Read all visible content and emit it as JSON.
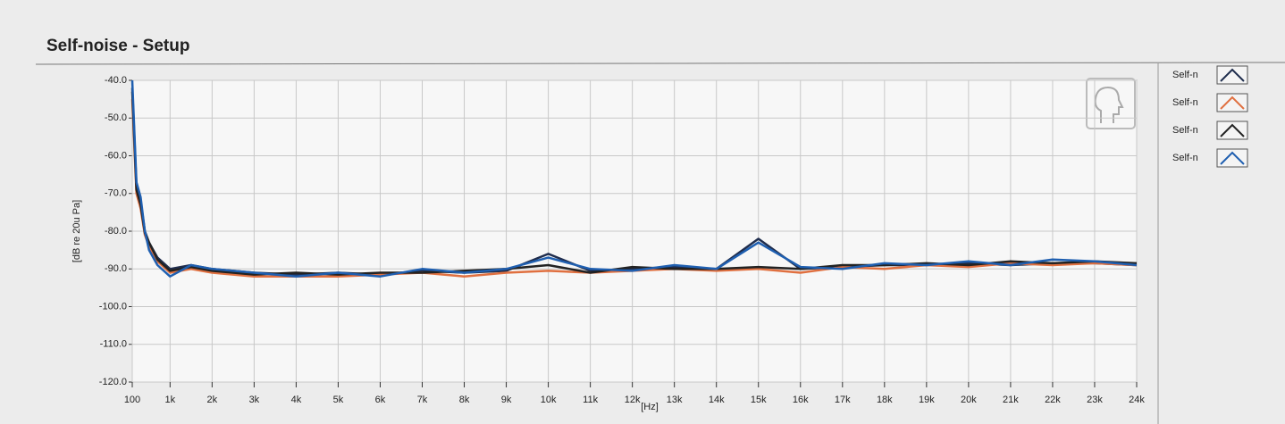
{
  "chart_data": {
    "type": "line",
    "title": "Self-noise - Setup",
    "y_label": "[dB re 20u Pa]",
    "x_label": "[Hz]",
    "x": [
      100,
      200,
      300,
      400,
      500,
      700,
      1000,
      1500,
      2000,
      3000,
      4000,
      5000,
      6000,
      7000,
      8000,
      9000,
      10000,
      11000,
      12000,
      13000,
      14000,
      15000,
      16000,
      17000,
      18000,
      19000,
      20000,
      21000,
      22000,
      23000,
      24000
    ],
    "series": [
      {
        "name": "Self-n",
        "color": "#1f2d4d",
        "values": [
          -42,
          -68,
          -72,
          -80,
          -83,
          -87,
          -90,
          -89,
          -90,
          -91,
          -91.5,
          -91,
          -91.5,
          -90.5,
          -91,
          -90.5,
          -86,
          -90.5,
          -90,
          -89.5,
          -90,
          -82,
          -90,
          -89.5,
          -89,
          -89,
          -88.5,
          -89,
          -88.5,
          -88.5,
          -89
        ]
      },
      {
        "name": "Self-n",
        "color": "#e07040",
        "values": [
          -45,
          -70,
          -74,
          -81,
          -84,
          -88,
          -91,
          -90,
          -91,
          -92,
          -92,
          -92,
          -91.5,
          -91,
          -92,
          -91,
          -90.5,
          -91,
          -90.5,
          -90,
          -90.5,
          -90,
          -91,
          -89.5,
          -90,
          -89,
          -89.5,
          -88.5,
          -89,
          -88.5,
          -89
        ]
      },
      {
        "name": "Self-n",
        "color": "#222222",
        "values": [
          -43,
          -69,
          -73,
          -80.5,
          -83,
          -87.5,
          -90.5,
          -89.5,
          -90.5,
          -91.5,
          -91,
          -91.5,
          -91,
          -91,
          -90.5,
          -90,
          -89,
          -91,
          -89.5,
          -90,
          -90,
          -89.5,
          -90,
          -89,
          -89,
          -88.5,
          -89,
          -88,
          -88.5,
          -88,
          -88.5
        ]
      },
      {
        "name": "Self-n",
        "color": "#1f5fb0",
        "values": [
          -40,
          -67,
          -71,
          -80,
          -85,
          -89,
          -92,
          -89,
          -90,
          -91,
          -92,
          -91,
          -92,
          -90,
          -91,
          -90,
          -87,
          -90,
          -90.5,
          -89,
          -90,
          -83,
          -89.5,
          -90,
          -88.5,
          -89,
          -88,
          -89,
          -87.5,
          -88,
          -89
        ]
      }
    ],
    "xlim": [
      100,
      24000
    ],
    "ylim": [
      -120,
      -40
    ],
    "xticks": [
      100,
      {
        "value": 1000,
        "label": "1k"
      },
      {
        "value": 2000,
        "label": "2k"
      },
      {
        "value": 3000,
        "label": "3k"
      },
      {
        "value": 4000,
        "label": "4k"
      },
      {
        "value": 5000,
        "label": "5k"
      },
      {
        "value": 6000,
        "label": "6k"
      },
      {
        "value": 7000,
        "label": "7k"
      },
      {
        "value": 8000,
        "label": "8k"
      },
      {
        "value": 9000,
        "label": "9k"
      },
      {
        "value": 10000,
        "label": "10k"
      },
      {
        "value": 11000,
        "label": "11k"
      },
      {
        "value": 12000,
        "label": "12k"
      },
      {
        "value": 13000,
        "label": "13k"
      },
      {
        "value": 14000,
        "label": "14k"
      },
      {
        "value": 15000,
        "label": "15k"
      },
      {
        "value": 16000,
        "label": "16k"
      },
      {
        "value": 17000,
        "label": "17k"
      },
      {
        "value": 18000,
        "label": "18k"
      },
      {
        "value": 19000,
        "label": "19k"
      },
      {
        "value": 20000,
        "label": "20k"
      },
      {
        "value": 21000,
        "label": "21k"
      },
      {
        "value": 22000,
        "label": "22k"
      },
      {
        "value": 23000,
        "label": "23k"
      },
      {
        "value": 24000,
        "label": "24k"
      }
    ],
    "yticks": [
      {
        "value": -120,
        "label": "-120.0"
      },
      {
        "value": -110,
        "label": "-110.0"
      },
      {
        "value": -100,
        "label": "-100.0"
      },
      {
        "value": -90,
        "label": "-90.0"
      },
      {
        "value": -80,
        "label": "-80.0"
      },
      {
        "value": -70,
        "label": "-70.0"
      },
      {
        "value": -60,
        "label": "-60.0"
      },
      {
        "value": -50,
        "label": "-50.0"
      },
      {
        "value": -40,
        "label": "-40.0"
      }
    ],
    "grid": true
  }
}
